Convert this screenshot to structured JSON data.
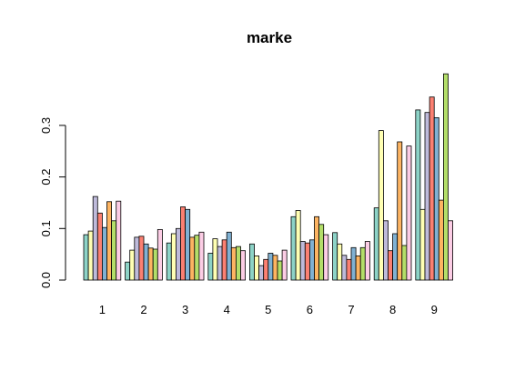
{
  "chart_data": {
    "type": "bar",
    "title": "marke",
    "xlabel": "",
    "ylabel": "",
    "categories": [
      "1",
      "2",
      "3",
      "4",
      "5",
      "6",
      "7",
      "8",
      "9"
    ],
    "yticks": [
      0.0,
      0.1,
      0.2,
      0.3
    ],
    "ytick_labels": [
      "0.0",
      "0.1",
      "0.2",
      "0.3"
    ],
    "ylim": [
      0,
      0.4
    ],
    "grid": false,
    "legend": "none",
    "colors": [
      "#8DD3C7",
      "#FFFFB3",
      "#BEBADA",
      "#FB8072",
      "#80B1D3",
      "#FDB462",
      "#B3DE69",
      "#FCCDE5"
    ],
    "series": [
      {
        "values": [
          0.088,
          0.035,
          0.072,
          0.052,
          0.07,
          0.123,
          0.092,
          0.14,
          0.33
        ]
      },
      {
        "values": [
          0.095,
          0.058,
          0.09,
          0.08,
          0.047,
          0.135,
          0.07,
          0.29,
          0.137
        ]
      },
      {
        "values": [
          0.162,
          0.083,
          0.1,
          0.065,
          0.028,
          0.075,
          0.048,
          0.115,
          0.325
        ]
      },
      {
        "values": [
          0.13,
          0.085,
          0.142,
          0.078,
          0.04,
          0.072,
          0.04,
          0.057,
          0.355
        ]
      },
      {
        "values": [
          0.102,
          0.07,
          0.137,
          0.093,
          0.052,
          0.078,
          0.063,
          0.09,
          0.315
        ]
      },
      {
        "values": [
          0.152,
          0.062,
          0.083,
          0.063,
          0.048,
          0.123,
          0.047,
          0.268,
          0.155
        ]
      },
      {
        "values": [
          0.115,
          0.06,
          0.087,
          0.065,
          0.037,
          0.108,
          0.063,
          0.067,
          0.4
        ]
      },
      {
        "values": [
          0.153,
          0.098,
          0.093,
          0.057,
          0.058,
          0.088,
          0.075,
          0.26,
          0.115
        ]
      }
    ]
  }
}
